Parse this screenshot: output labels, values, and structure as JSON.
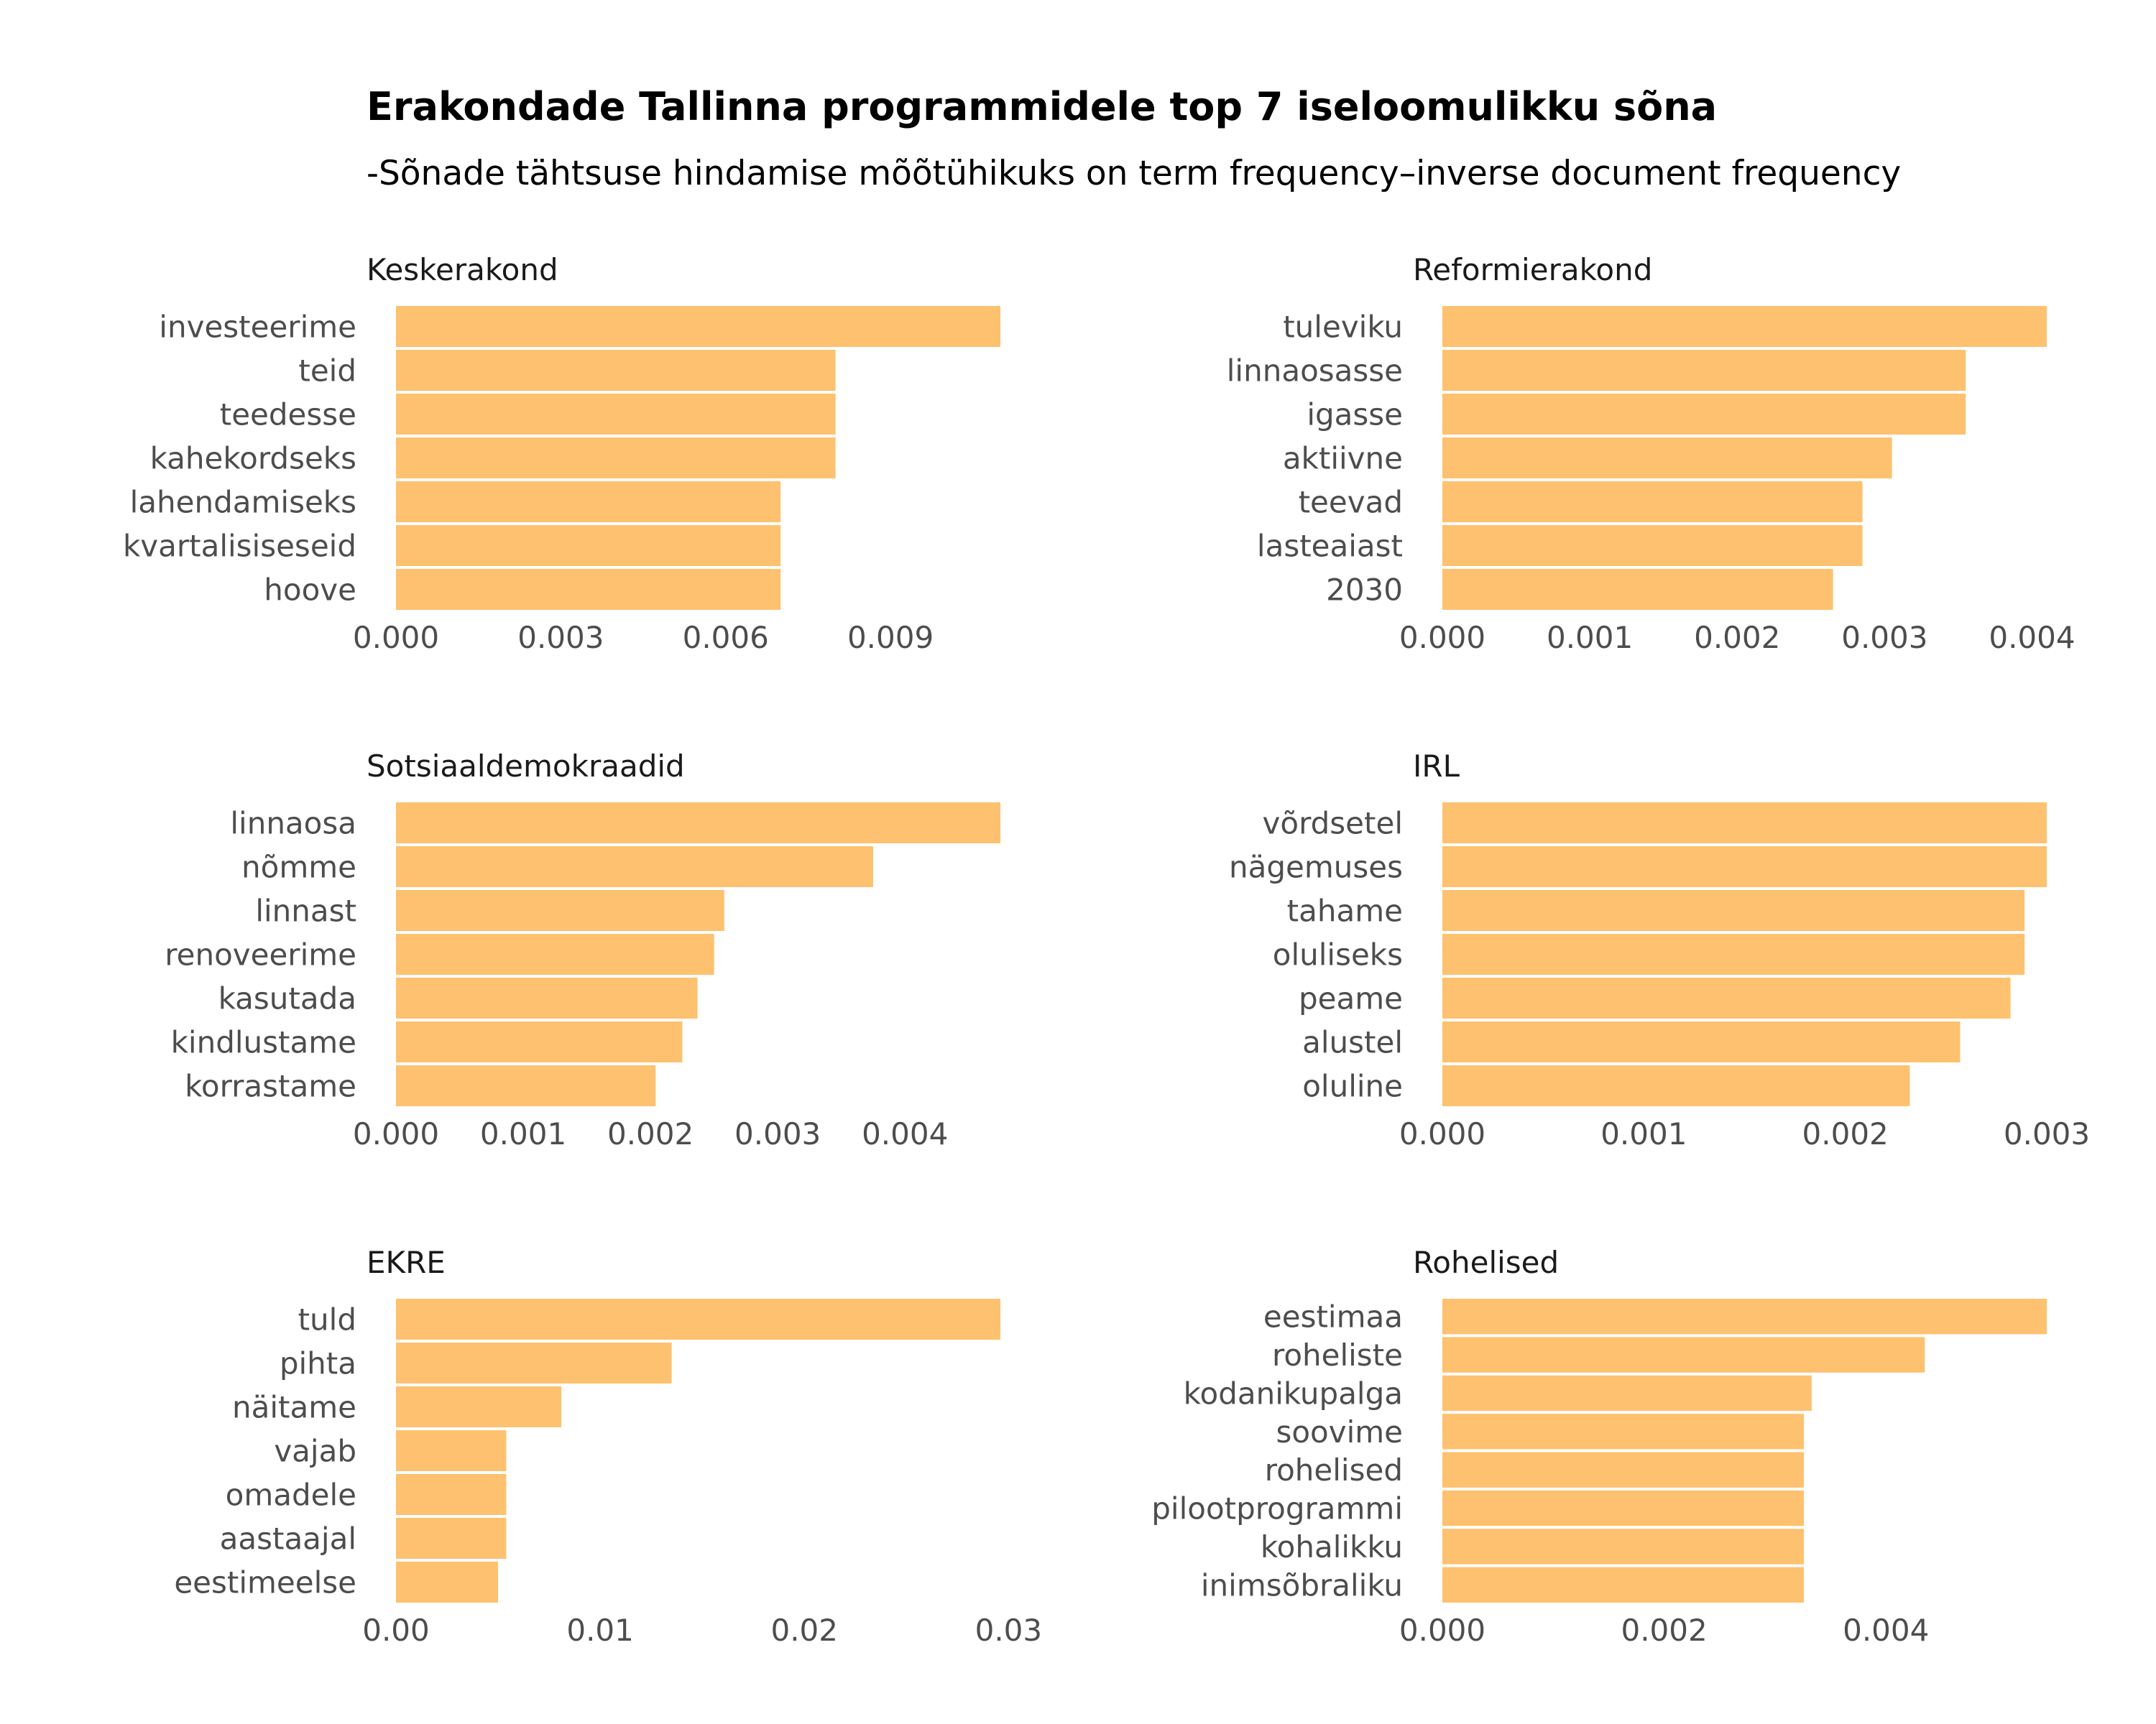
{
  "title": "Erakondade Tallinna programmidele top 7 iseloomulikku sõna",
  "subtitle": "-Sõnade tähtsuse hindamise mõõtühikuks on term frequency–inverse document frequency",
  "colors": {
    "bar": "#FDC170",
    "text": "#4d4d4d"
  },
  "chart_data": [
    {
      "type": "bar",
      "orientation": "horizontal",
      "title": "Keskerakond",
      "categories": [
        "investeerime",
        "teid",
        "teedesse",
        "kahekordseks",
        "lahendamiseks",
        "kvartalisiseseid",
        "hoove"
      ],
      "values": [
        0.011,
        0.008,
        0.008,
        0.008,
        0.007,
        0.007,
        0.007
      ],
      "xlim": [
        0,
        0.011
      ],
      "ticks": [
        0,
        0.003,
        0.006,
        0.009
      ],
      "tick_labels": [
        "0.000",
        "0.003",
        "0.006",
        "0.009"
      ],
      "grid": false
    },
    {
      "type": "bar",
      "orientation": "horizontal",
      "title": "Reformierakond",
      "categories": [
        "tuleviku",
        "linnaosasse",
        "igasse",
        "aktiivne",
        "teevad",
        "lasteaiast",
        "2030"
      ],
      "values": [
        0.0041,
        0.00355,
        0.00355,
        0.00305,
        0.00285,
        0.00285,
        0.00265
      ],
      "xlim": [
        0,
        0.0041
      ],
      "ticks": [
        0,
        0.001,
        0.002,
        0.003,
        0.004
      ],
      "tick_labels": [
        "0.000",
        "0.001",
        "0.002",
        "0.003",
        "0.004"
      ],
      "grid": false
    },
    {
      "type": "bar",
      "orientation": "horizontal",
      "title": "Sotsiaaldemokraadid",
      "categories": [
        "linnaosa",
        "nõmme",
        "linnast",
        "renoveerime",
        "kasutada",
        "kindlustame",
        "korrastame"
      ],
      "values": [
        0.00475,
        0.00375,
        0.00258,
        0.0025,
        0.00237,
        0.00225,
        0.00204
      ],
      "xlim": [
        0,
        0.00475
      ],
      "ticks": [
        0,
        0.001,
        0.002,
        0.003,
        0.004
      ],
      "tick_labels": [
        "0.000",
        "0.001",
        "0.002",
        "0.003",
        "0.004"
      ],
      "grid": false
    },
    {
      "type": "bar",
      "orientation": "horizontal",
      "title": "IRL",
      "categories": [
        "võrdsetel",
        "nägemuses",
        "tahame",
        "oluliseks",
        "peame",
        "alustel",
        "oluline"
      ],
      "values": [
        0.003,
        0.003,
        0.00289,
        0.00289,
        0.00282,
        0.00257,
        0.00232
      ],
      "xlim": [
        0,
        0.003
      ],
      "ticks": [
        0,
        0.001,
        0.002,
        0.003
      ],
      "tick_labels": [
        "0.000",
        "0.001",
        "0.002",
        "0.003"
      ],
      "grid": false
    },
    {
      "type": "bar",
      "orientation": "horizontal",
      "title": "EKRE",
      "categories": [
        "tuld",
        "pihta",
        "näitame",
        "vajab",
        "omadele",
        "aastaajal",
        "eestimeelse"
      ],
      "values": [
        0.0296,
        0.0135,
        0.0081,
        0.0054,
        0.0054,
        0.0054,
        0.005
      ],
      "xlim": [
        0,
        0.0296
      ],
      "ticks": [
        0,
        0.01,
        0.02,
        0.03
      ],
      "tick_labels": [
        "0.00",
        "0.01",
        "0.02",
        "0.03"
      ],
      "grid": false
    },
    {
      "type": "bar",
      "orientation": "horizontal",
      "title": "Rohelised",
      "categories": [
        "eestimaa",
        "roheliste",
        "kodanikupalga",
        "soovime",
        "rohelised",
        "pilootprogrammi",
        "kohalikku",
        "inimsõbraliku"
      ],
      "values": [
        0.00545,
        0.00435,
        0.00333,
        0.00326,
        0.00326,
        0.00326,
        0.00326,
        0.00326
      ],
      "xlim": [
        0,
        0.00545
      ],
      "ticks": [
        0,
        0.002,
        0.004
      ],
      "tick_labels": [
        "0.000",
        "0.002",
        "0.004"
      ],
      "grid": false
    }
  ]
}
